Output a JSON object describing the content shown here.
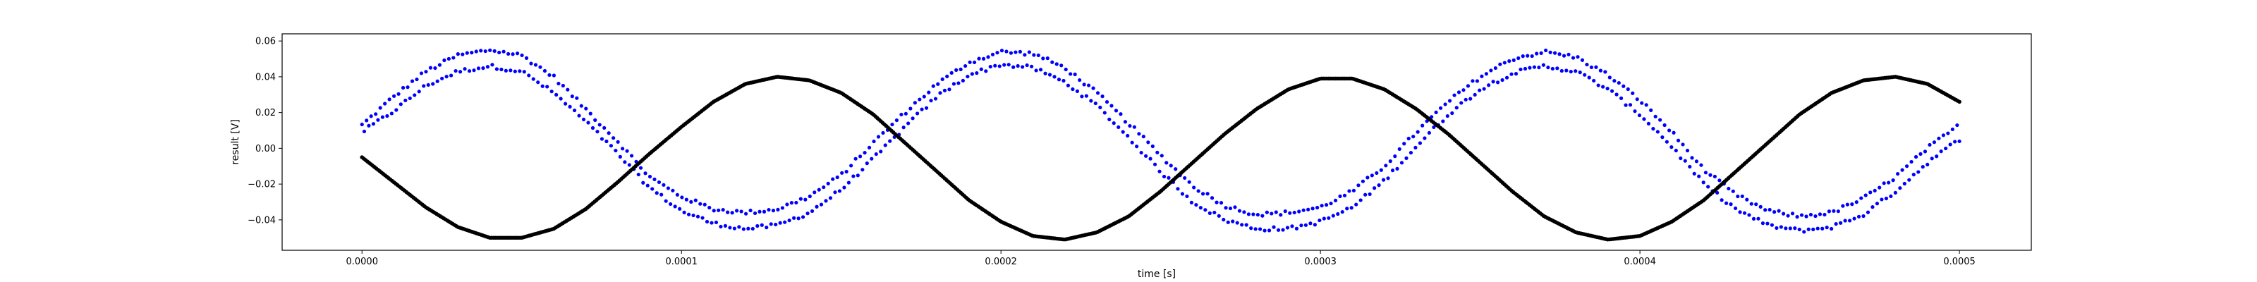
{
  "chart_data": {
    "type": "scatter",
    "xlabel": "time [s]",
    "ylabel": "result [V]",
    "xlim": [
      -2.5e-05,
      0.0005225
    ],
    "ylim": [
      -0.057,
      0.064
    ],
    "x_ticks": [
      0.0,
      0.0001,
      0.0002,
      0.0003,
      0.0004,
      0.0005
    ],
    "x_tick_labels": [
      "0.0000",
      "0.0001",
      "0.0002",
      "0.0003",
      "0.0004",
      "0.0005"
    ],
    "y_ticks": [
      -0.04,
      -0.02,
      0.0,
      0.02,
      0.04,
      0.06
    ],
    "y_tick_labels": [
      "−0.04",
      "−0.02",
      "0.00",
      "0.02",
      "0.04",
      "0.06"
    ],
    "grid": false,
    "series": [
      {
        "color": "#0000ff",
        "marker_size": 2.6,
        "sample_count": 700,
        "x": [
          0.0,
          1e-05,
          2e-05,
          3e-05,
          4e-05,
          5e-05,
          6e-05,
          7e-05,
          8e-05,
          9e-05,
          0.0001,
          0.00011,
          0.00012,
          0.00013,
          0.00014,
          0.00015,
          0.00016,
          0.00017,
          0.00018,
          0.00019,
          0.0002,
          0.00021,
          0.00022,
          0.00023,
          0.00024,
          0.00025,
          0.00026,
          0.00027,
          0.00028,
          0.00029,
          0.0003,
          0.00031,
          0.00032,
          0.00033,
          0.00034,
          0.00035,
          0.00036,
          0.00037,
          0.00038,
          0.00039,
          0.0004,
          0.00041,
          0.00042,
          0.00043,
          0.00044,
          0.00045,
          0.00046,
          0.00047,
          0.00048,
          0.00049,
          0.0005
        ],
        "y_upper": [
          0.013,
          0.029,
          0.043,
          0.052,
          0.055,
          0.052,
          0.04,
          0.022,
          0.004,
          -0.016,
          -0.027,
          -0.034,
          -0.036,
          -0.034,
          -0.027,
          -0.015,
          0.003,
          0.02,
          0.036,
          0.048,
          0.054,
          0.053,
          0.045,
          0.031,
          0.014,
          -0.004,
          -0.021,
          -0.032,
          -0.037,
          -0.036,
          -0.033,
          -0.024,
          -0.01,
          0.009,
          0.026,
          0.04,
          0.05,
          0.054,
          0.051,
          0.041,
          0.027,
          0.009,
          -0.012,
          -0.026,
          -0.035,
          -0.038,
          -0.036,
          -0.028,
          -0.016,
          0.0,
          0.013
        ],
        "y_lower": [
          0.009,
          0.021,
          0.035,
          0.043,
          0.046,
          0.043,
          0.031,
          0.015,
          -0.003,
          -0.022,
          -0.035,
          -0.042,
          -0.045,
          -0.043,
          -0.036,
          -0.023,
          -0.006,
          0.012,
          0.029,
          0.041,
          0.047,
          0.045,
          0.037,
          0.024,
          0.006,
          -0.013,
          -0.03,
          -0.04,
          -0.045,
          -0.045,
          -0.041,
          -0.033,
          -0.018,
          0.001,
          0.019,
          0.033,
          0.042,
          0.046,
          0.043,
          0.033,
          0.019,
          0.001,
          -0.02,
          -0.034,
          -0.043,
          -0.046,
          -0.044,
          -0.037,
          -0.024,
          -0.008,
          0.005
        ]
      },
      {
        "color": "#000000",
        "marker_size": 2.8,
        "sample_count": 900,
        "x": [
          0.0,
          1e-05,
          2e-05,
          3e-05,
          4e-05,
          5e-05,
          6e-05,
          7e-05,
          8e-05,
          9e-05,
          0.0001,
          0.00011,
          0.00012,
          0.00013,
          0.00014,
          0.00015,
          0.00016,
          0.00017,
          0.00018,
          0.00019,
          0.0002,
          0.00021,
          0.00022,
          0.00023,
          0.00024,
          0.00025,
          0.00026,
          0.00027,
          0.00028,
          0.00029,
          0.0003,
          0.00031,
          0.00032,
          0.00033,
          0.00034,
          0.00035,
          0.00036,
          0.00037,
          0.00038,
          0.00039,
          0.0004,
          0.00041,
          0.00042,
          0.00043,
          0.00044,
          0.00045,
          0.00046,
          0.00047,
          0.00048,
          0.00049,
          0.0005
        ],
        "y": [
          -0.005,
          -0.019,
          -0.033,
          -0.044,
          -0.05,
          -0.05,
          -0.045,
          -0.034,
          -0.019,
          -0.003,
          0.012,
          0.026,
          0.036,
          0.04,
          0.038,
          0.031,
          0.019,
          0.003,
          -0.013,
          -0.029,
          -0.041,
          -0.049,
          -0.051,
          -0.047,
          -0.038,
          -0.024,
          -0.008,
          0.008,
          0.022,
          0.033,
          0.039,
          0.039,
          0.033,
          0.022,
          0.008,
          -0.008,
          -0.024,
          -0.038,
          -0.047,
          -0.051,
          -0.049,
          -0.041,
          -0.029,
          -0.013,
          0.003,
          0.019,
          0.031,
          0.038,
          0.04,
          0.036,
          0.026
        ]
      }
    ]
  }
}
